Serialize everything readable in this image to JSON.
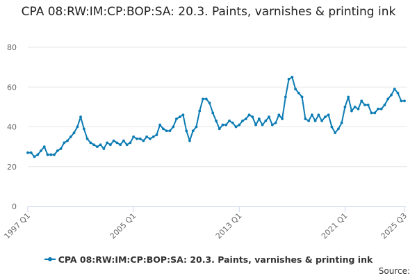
{
  "chart_data": {
    "type": "line",
    "title": "CPA 08:RW:IM:CP:BOP:SA: 20.3. Paints, varnishes & printing ink",
    "xlabel": "",
    "ylabel": "",
    "ylim": [
      0,
      80
    ],
    "yticks": [
      0,
      20,
      40,
      60,
      80
    ],
    "x_tick_labels": [
      "1997 Q1",
      "2005 Q1",
      "2013 Q1",
      "2021 Q1",
      "2025 Q3"
    ],
    "x_tick_indices": [
      0,
      32,
      64,
      96,
      114
    ],
    "grid": true,
    "legend_position": "bottom",
    "source_label": "Source:",
    "series": [
      {
        "name": "CPA 08:RW:IM:CP:BOP:SA: 20.3. Paints, varnishes & printing ink",
        "color": "#0b7bb3",
        "x": [
          "1997 Q1",
          "1997 Q2",
          "1997 Q3",
          "1997 Q4",
          "1998 Q1",
          "1998 Q2",
          "1998 Q3",
          "1998 Q4",
          "1999 Q1",
          "1999 Q2",
          "1999 Q3",
          "1999 Q4",
          "2000 Q1",
          "2000 Q2",
          "2000 Q3",
          "2000 Q4",
          "2001 Q1",
          "2001 Q2",
          "2001 Q3",
          "2001 Q4",
          "2002 Q1",
          "2002 Q2",
          "2002 Q3",
          "2002 Q4",
          "2003 Q1",
          "2003 Q2",
          "2003 Q3",
          "2003 Q4",
          "2004 Q1",
          "2004 Q2",
          "2004 Q3",
          "2004 Q4",
          "2005 Q1",
          "2005 Q2",
          "2005 Q3",
          "2005 Q4",
          "2006 Q1",
          "2006 Q2",
          "2006 Q3",
          "2006 Q4",
          "2007 Q1",
          "2007 Q2",
          "2007 Q3",
          "2007 Q4",
          "2008 Q1",
          "2008 Q2",
          "2008 Q3",
          "2008 Q4",
          "2009 Q1",
          "2009 Q2",
          "2009 Q3",
          "2009 Q4",
          "2010 Q1",
          "2010 Q2",
          "2010 Q3",
          "2010 Q4",
          "2011 Q1",
          "2011 Q2",
          "2011 Q3",
          "2011 Q4",
          "2012 Q1",
          "2012 Q2",
          "2012 Q3",
          "2012 Q4",
          "2013 Q1",
          "2013 Q2",
          "2013 Q3",
          "2013 Q4",
          "2014 Q1",
          "2014 Q2",
          "2014 Q3",
          "2014 Q4",
          "2015 Q1",
          "2015 Q2",
          "2015 Q3",
          "2015 Q4",
          "2016 Q1",
          "2016 Q2",
          "2016 Q3",
          "2016 Q4",
          "2017 Q1",
          "2017 Q2",
          "2017 Q3",
          "2017 Q4",
          "2018 Q1",
          "2018 Q2",
          "2018 Q3",
          "2018 Q4",
          "2019 Q1",
          "2019 Q2",
          "2019 Q3",
          "2019 Q4",
          "2020 Q1",
          "2020 Q2",
          "2020 Q3",
          "2020 Q4",
          "2021 Q1",
          "2021 Q2",
          "2021 Q3",
          "2021 Q4",
          "2022 Q1",
          "2022 Q2",
          "2022 Q3",
          "2022 Q4",
          "2023 Q1",
          "2023 Q2",
          "2023 Q3",
          "2023 Q4",
          "2024 Q1",
          "2024 Q2",
          "2024 Q3",
          "2024 Q4",
          "2025 Q1",
          "2025 Q2",
          "2025 Q3"
        ],
        "values": [
          27,
          27,
          25,
          26,
          28,
          30,
          26,
          26,
          26,
          28,
          29,
          32,
          33,
          35,
          37,
          40,
          45,
          39,
          34,
          32,
          31,
          30,
          31,
          29,
          32,
          31,
          33,
          32,
          31,
          33,
          31,
          32,
          35,
          34,
          34,
          33,
          35,
          34,
          35,
          36,
          41,
          39,
          38,
          38,
          40,
          44,
          45,
          46,
          38,
          33,
          38,
          40,
          48,
          54,
          54,
          52,
          47,
          43,
          39,
          41,
          41,
          43,
          42,
          40,
          41,
          43,
          44,
          46,
          45,
          41,
          44,
          41,
          43,
          45,
          41,
          42,
          46,
          44,
          55,
          64,
          65,
          59,
          57,
          55,
          44,
          43,
          46,
          43,
          46,
          43,
          45,
          46,
          40,
          37,
          39,
          42,
          50,
          55,
          48,
          50,
          49,
          53,
          51,
          51,
          47,
          47,
          49,
          49,
          51,
          54,
          56,
          59,
          57,
          53,
          53
        ]
      }
    ]
  }
}
